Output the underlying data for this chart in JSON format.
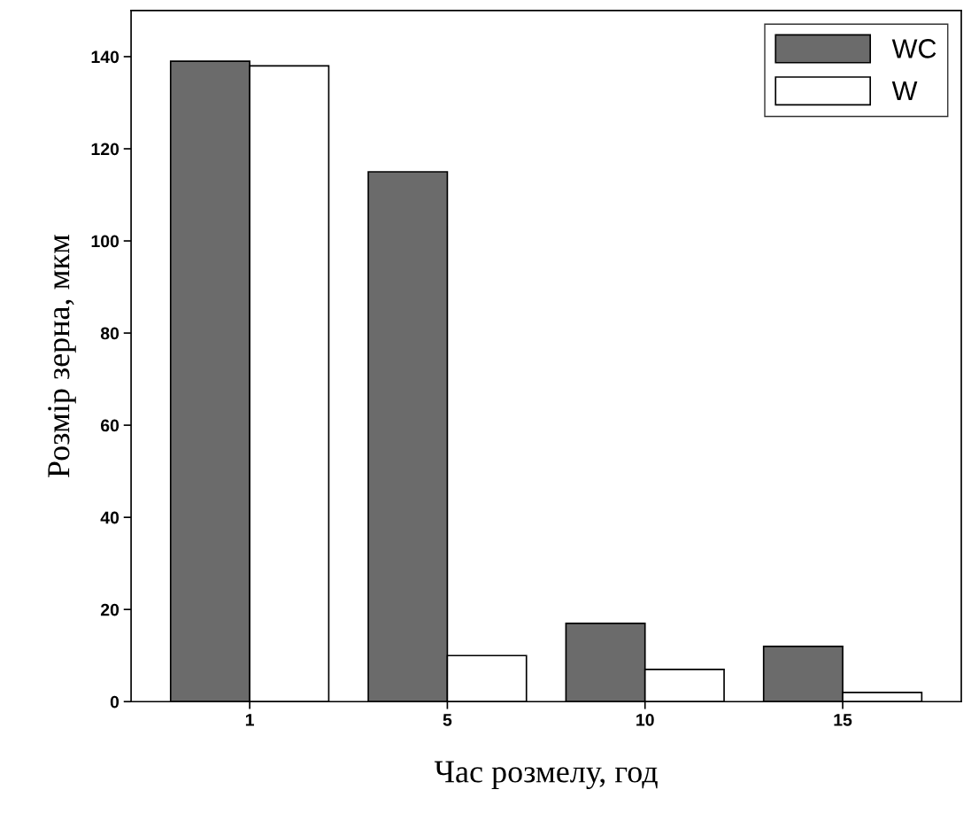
{
  "chart_data": {
    "type": "bar",
    "xlabel": "Час розмелу, год",
    "ylabel": "Розмір зерна, мкм",
    "categories": [
      "1",
      "5",
      "10",
      "15"
    ],
    "series": [
      {
        "name": "WC",
        "color": "#6b6b6b",
        "values": [
          139,
          115,
          17,
          12
        ]
      },
      {
        "name": "W",
        "color": "#ffffff",
        "values": [
          138,
          10,
          7,
          2
        ]
      }
    ],
    "ylim": [
      0,
      150
    ],
    "yticks": [
      0,
      20,
      40,
      60,
      80,
      100,
      120,
      140
    ],
    "grid": false,
    "legend": "top right"
  }
}
